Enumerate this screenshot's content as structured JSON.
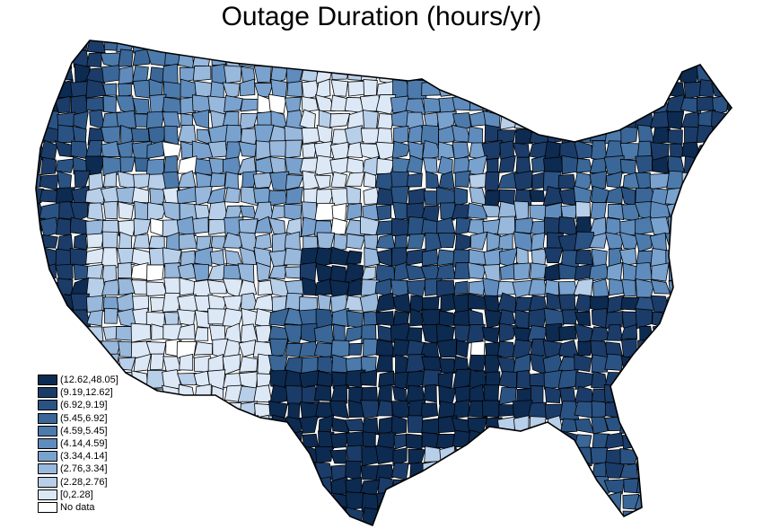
{
  "title": "Outage Duration (hours/yr)",
  "legend": [
    {
      "label": "(12.62,48.05]",
      "color": "#0d2a50"
    },
    {
      "label": "(9.19,12.62]",
      "color": "#1b3c68"
    },
    {
      "label": "(6.92,9.19]",
      "color": "#2a5383"
    },
    {
      "label": "(5.45,6.92]",
      "color": "#3a6797"
    },
    {
      "label": "(4.59,5.45]",
      "color": "#4c7aab"
    },
    {
      "label": "(4.14,4.59]",
      "color": "#5f8cbd"
    },
    {
      "label": "(3.34,4.14]",
      "color": "#7aa2ce"
    },
    {
      "label": "(2.76,3.34]",
      "color": "#98b8dc"
    },
    {
      "label": "(2.28,2.76]",
      "color": "#b8cfe9"
    },
    {
      "label": "[0,2.28]",
      "color": "#dce8f6"
    },
    {
      "label": "No data",
      "color": "#ffffff"
    }
  ],
  "regions": [
    {
      "name": "pacific-coast",
      "class": 1
    },
    {
      "name": "northwest-interior",
      "class": 4
    },
    {
      "name": "nevada-great-basin",
      "class": 8
    },
    {
      "name": "southern-california-desert",
      "class": 7
    },
    {
      "name": "arizona-new-mexico",
      "class": 9
    },
    {
      "name": "northern-rockies",
      "class": 6
    },
    {
      "name": "colorado-utah-plateau",
      "class": 7
    },
    {
      "name": "northern-plains",
      "class": 9
    },
    {
      "name": "central-plains",
      "class": 7
    },
    {
      "name": "kansas-cluster",
      "class": 0
    },
    {
      "name": "oklahoma-north-texas",
      "class": 3
    },
    {
      "name": "texas-gulf",
      "class": 0
    },
    {
      "name": "upper-midwest",
      "class": 5
    },
    {
      "name": "iowa-missouri",
      "class": 2
    },
    {
      "name": "michigan",
      "class": 1
    },
    {
      "name": "ohio-valley",
      "class": 6
    },
    {
      "name": "appalachia",
      "class": 1
    },
    {
      "name": "lower-mississippi",
      "class": 0
    },
    {
      "name": "southeast",
      "class": 1
    },
    {
      "name": "florida-peninsula",
      "class": 2
    },
    {
      "name": "mid-atlantic",
      "class": 5
    },
    {
      "name": "new-england",
      "class": 1
    },
    {
      "name": "new-york-upstate",
      "class": 3
    }
  ]
}
